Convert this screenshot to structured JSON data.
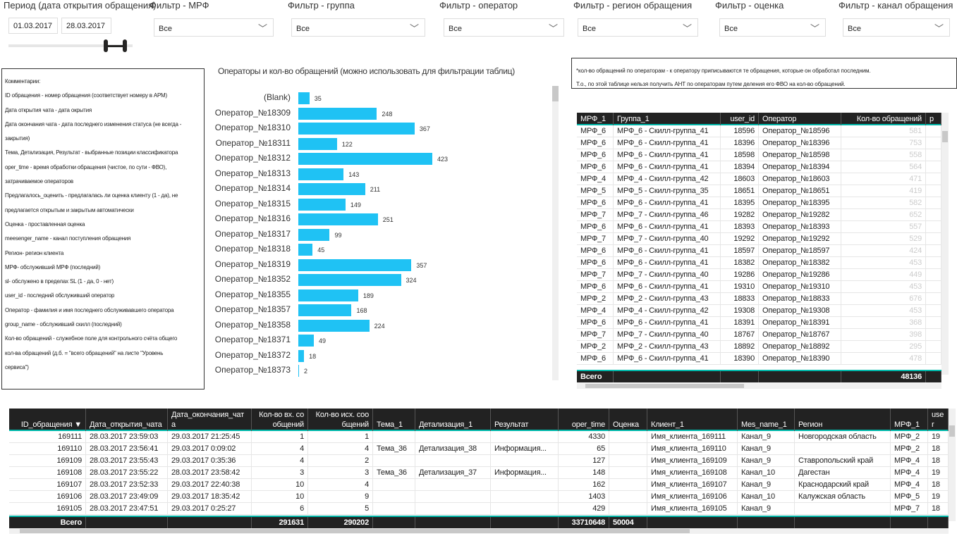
{
  "filters": {
    "period": {
      "label": "Период (дата открытия обращения)",
      "from": "01.03.2017",
      "to": "28.03.2017"
    },
    "mrf": {
      "label": "Фильтр - МРФ",
      "value": "Все"
    },
    "group": {
      "label": "Фильтр - группа",
      "value": "Все"
    },
    "operator": {
      "label": "Фильтр - оператор",
      "value": "Все"
    },
    "region": {
      "label": "Фильтр - регион обращения",
      "value": "Все"
    },
    "rating": {
      "label": "Фильтр - оценка",
      "value": "Все"
    },
    "channel": {
      "label": "Фильтр - канал обращения",
      "value": "Все"
    }
  },
  "comments": [
    "Комментарии:",
    "ID обращения - номер обращения (соответствует номеру в АРМ)",
    "Дата открытия чата - дата окрытия",
    "Дата окончания чата - дата последнего изменения статуса (не всегда -",
    "закрытия)",
    "Тема, Детализация, Результат - выбранные позиции классификатора",
    "oper_time - время обработки обращения (чистое, по сути - ФВО),",
    "затрачиваемое операторов",
    "Предлагалось_оценить - предлагалась ли оценка клиенту (1 - да), не",
    "предлагается открытым и закрытым автоматически",
    "Оценка - проставленная оценка",
    "meesenger_name - канал поступления обращения",
    "Регион- регион клиента",
    "МРФ- обслуживший МРФ (последний)",
    "sl- обслужено в пределах SL (1 - да, 0 - нет)",
    "user_id - последний обслуживший оператор",
    "Оператор - фамилия и имя последнего обслуживавшего оператора",
    "group_name - обслуживший скилл (последний)",
    "Кол-во обращений - служебное поле для контрольного счёта общего",
    "кол-ва обращений (д.б. = \"всего обращений\" на листе \"Уровень",
    "сервиса\")"
  ],
  "note": {
    "line1": "*кол-во обращений по операторам - к оператору приписываются те обращения, которые он обработал последним.",
    "line2": "Т.о., по этой таблице нельзя получить АНТ по операторам путем деления его ФВО на кол-во обращений."
  },
  "chart_data": {
    "type": "bar",
    "orientation": "horizontal",
    "title": "Операторы и кол-во обращений (можно использовать для фильтрации таблиц)",
    "categories": [
      "(Blank)",
      "Оператор_№18309",
      "Оператор_№18310",
      "Оператор_№18311",
      "Оператор_№18312",
      "Оператор_№18313",
      "Оператор_№18314",
      "Оператор_№18315",
      "Оператор_№18316",
      "Оператор_№18317",
      "Оператор_№18318",
      "Оператор_№18319",
      "Оператор_№18352",
      "Оператор_№18355",
      "Оператор_№18357",
      "Оператор_№18358",
      "Оператор_№18371",
      "Оператор_№18372",
      "Оператор_№18373"
    ],
    "values": [
      35,
      248,
      367,
      122,
      423,
      143,
      211,
      149,
      251,
      99,
      45,
      357,
      324,
      189,
      168,
      224,
      49,
      18,
      2
    ],
    "color": "#1fc2f4"
  },
  "operator_table": {
    "columns": [
      "МРФ_1",
      "Группа_1",
      "user_id",
      "Оператор",
      "Кол-во обращений",
      "Пр"
    ],
    "rows": [
      [
        "МРФ_6",
        "МРФ_6 - Скилл-группа_41",
        "18596",
        "Оператор_№18596",
        "581",
        ""
      ],
      [
        "МРФ_6",
        "МРФ_6 - Скилл-группа_41",
        "18396",
        "Оператор_№18396",
        "753",
        ""
      ],
      [
        "МРФ_6",
        "МРФ_6 - Скилл-группа_41",
        "18598",
        "Оператор_№18598",
        "558",
        ""
      ],
      [
        "МРФ_6",
        "МРФ_6 - Скилл-группа_41",
        "18394",
        "Оператор_№18394",
        "564",
        ""
      ],
      [
        "МРФ_4",
        "МРФ_4 - Скилл-группа_42",
        "18603",
        "Оператор_№18603",
        "471",
        ""
      ],
      [
        "МРФ_5",
        "МРФ_5 - Скилл-группа_35",
        "18651",
        "Оператор_№18651",
        "419",
        ""
      ],
      [
        "МРФ_6",
        "МРФ_6 - Скилл-группа_41",
        "18395",
        "Оператор_№18395",
        "582",
        ""
      ],
      [
        "МРФ_7",
        "МРФ_7 - Скилл-группа_46",
        "19282",
        "Оператор_№19282",
        "652",
        ""
      ],
      [
        "МРФ_6",
        "МРФ_6 - Скилл-группа_41",
        "18393",
        "Оператор_№18393",
        "557",
        ""
      ],
      [
        "МРФ_7",
        "МРФ_7 - Скилл-группа_40",
        "19292",
        "Оператор_№19292",
        "529",
        ""
      ],
      [
        "МРФ_6",
        "МРФ_6 - Скилл-группа_41",
        "18597",
        "Оператор_№18597",
        "424",
        ""
      ],
      [
        "МРФ_6",
        "МРФ_6 - Скилл-группа_41",
        "18382",
        "Оператор_№18382",
        "453",
        ""
      ],
      [
        "МРФ_7",
        "МРФ_7 - Скилл-группа_40",
        "19286",
        "Оператор_№19286",
        "449",
        ""
      ],
      [
        "МРФ_6",
        "МРФ_6 - Скилл-группа_41",
        "19310",
        "Оператор_№19310",
        "453",
        ""
      ],
      [
        "МРФ_2",
        "МРФ_2 - Скилл-группа_43",
        "18833",
        "Оператор_№18833",
        "676",
        ""
      ],
      [
        "МРФ_4",
        "МРФ_4 - Скилл-группа_42",
        "19308",
        "Оператор_№19308",
        "453",
        ""
      ],
      [
        "МРФ_6",
        "МРФ_6 - Скилл-группа_41",
        "18391",
        "Оператор_№18391",
        "368",
        ""
      ],
      [
        "МРФ_7",
        "МРФ_7 - Скилл-группа_40",
        "18767",
        "Оператор_№18767",
        "398",
        ""
      ],
      [
        "МРФ_2",
        "МРФ_2 - Скилл-группа_43",
        "18892",
        "Оператор_№18892",
        "295",
        ""
      ],
      [
        "МРФ_6",
        "МРФ_6 - Скилл-группа_41",
        "18390",
        "Оператор_№18390",
        "478",
        ""
      ]
    ],
    "total": [
      "Всего",
      "",
      "",
      "",
      "48136",
      ""
    ]
  },
  "calls_table": {
    "columns": [
      "ID_обращения ▼",
      "Дата_открытия_чата",
      "Дата_окончания_чата",
      "Кол-во вх. сообщений",
      "Кол-во исх. сообщений",
      "Тема_1",
      "Детализация_1",
      "Результат",
      "oper_time",
      "Оценка",
      "Клиент_1",
      "Mes_name_1",
      "Регион",
      "МРФ_1",
      "user"
    ],
    "rows": [
      [
        "169111",
        "28.03.2017 23:59:03",
        "29.03.2017 21:25:45",
        "1",
        "1",
        "",
        "",
        "",
        "4330",
        "",
        "Имя_клиента_169111",
        "Канал_9",
        "Новгородская область",
        "МРФ_2",
        "19"
      ],
      [
        "169110",
        "28.03.2017 23:56:41",
        "29.03.2017 0:09:02",
        "4",
        "4",
        "Тема_36",
        "Детализация_38",
        "Информация...",
        "65",
        "",
        "Имя_клиента_169110",
        "Канал_9",
        "",
        "МРФ_2",
        "18"
      ],
      [
        "169109",
        "28.03.2017 23:55:43",
        "29.03.2017 0:35:36",
        "4",
        "2",
        "",
        "",
        "",
        "127",
        "",
        "Имя_клиента_169109",
        "Канал_9",
        "Ставропольский край",
        "МРФ_4",
        "18"
      ],
      [
        "169108",
        "28.03.2017 23:55:22",
        "28.03.2017 23:58:42",
        "3",
        "3",
        "Тема_36",
        "Детализация_37",
        "Информация...",
        "148",
        "",
        "Имя_клиента_169108",
        "Канал_10",
        "Дагестан",
        "МРФ_4",
        "19"
      ],
      [
        "169107",
        "28.03.2017 23:52:33",
        "29.03.2017 22:40:38",
        "10",
        "4",
        "",
        "",
        "",
        "162",
        "",
        "Имя_клиента_169107",
        "Канал_9",
        "Краснодарский край",
        "МРФ_4",
        "18"
      ],
      [
        "169106",
        "28.03.2017 23:49:09",
        "29.03.2017 18:35:42",
        "10",
        "9",
        "",
        "",
        "",
        "1403",
        "",
        "Имя_клиента_169106",
        "Канал_10",
        "Калужская область",
        "МРФ_5",
        "19"
      ],
      [
        "169105",
        "28.03.2017 23:47:51",
        "29.03.2017 0:25:27",
        "6",
        "5",
        "",
        "",
        "",
        "429",
        "",
        "Имя_клиента_169105",
        "Канал_9",
        "",
        "МРФ_7",
        "18"
      ]
    ],
    "total": [
      "Всего",
      "",
      "",
      "291631",
      "290202",
      "",
      "",
      "",
      "33710648",
      "50004",
      "",
      "",
      "",
      "",
      ""
    ]
  }
}
